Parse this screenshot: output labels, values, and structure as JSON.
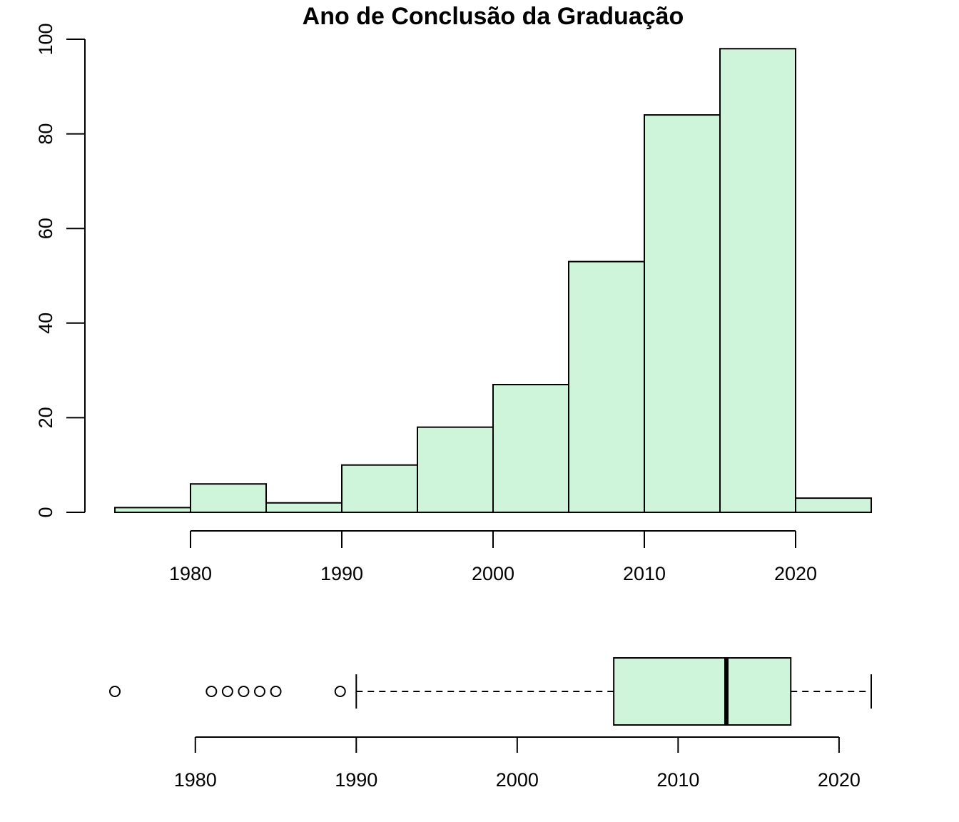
{
  "chart_data": [
    {
      "type": "histogram",
      "title": "Ano de Conclusão da Graduação",
      "xlabel": "",
      "ylabel": "",
      "bins": [
        {
          "start": 1975,
          "end": 1980,
          "count": 1
        },
        {
          "start": 1980,
          "end": 1985,
          "count": 6
        },
        {
          "start": 1985,
          "end": 1990,
          "count": 2
        },
        {
          "start": 1990,
          "end": 1995,
          "count": 10
        },
        {
          "start": 1995,
          "end": 2000,
          "count": 18
        },
        {
          "start": 2000,
          "end": 2005,
          "count": 27
        },
        {
          "start": 2005,
          "end": 2010,
          "count": 53
        },
        {
          "start": 2010,
          "end": 2015,
          "count": 84
        },
        {
          "start": 2015,
          "end": 2020,
          "count": 98
        },
        {
          "start": 2020,
          "end": 2025,
          "count": 3
        }
      ],
      "x_ticks": [
        "1980",
        "1990",
        "2000",
        "2010",
        "2020"
      ],
      "y_ticks": [
        "0",
        "20",
        "40",
        "60",
        "80",
        "100"
      ],
      "xlim": [
        1975,
        2025
      ],
      "ylim": [
        0,
        100
      ],
      "bar_color": "#cef5da"
    },
    {
      "type": "boxplot",
      "orientation": "horizontal",
      "q1": 2006,
      "median": 2013,
      "q3": 2017,
      "whisker_low": 1990,
      "whisker_high": 2022,
      "outliers": [
        1975,
        1981,
        1982,
        1983,
        1984,
        1985,
        1989
      ],
      "x_ticks": [
        "1980",
        "1990",
        "2000",
        "2010",
        "2020"
      ],
      "xlim": [
        1975,
        2022
      ],
      "box_color": "#cef5da"
    }
  ]
}
